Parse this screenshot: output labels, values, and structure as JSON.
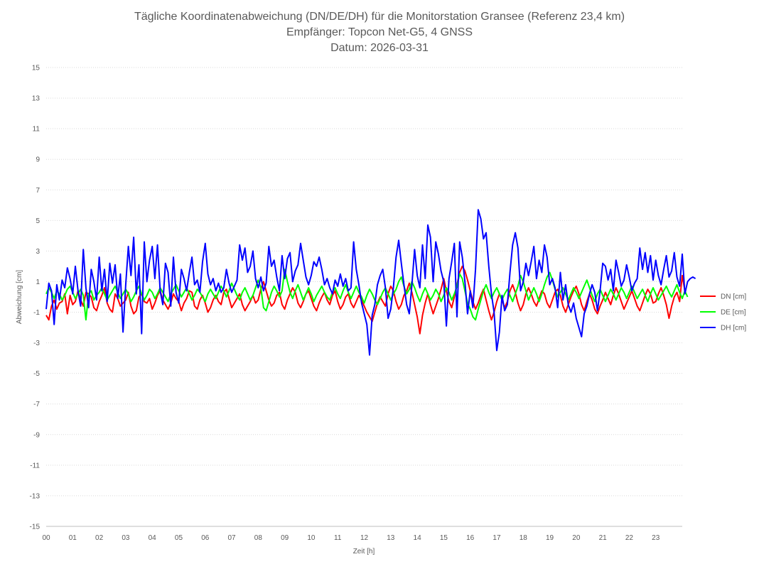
{
  "chart_data": {
    "type": "line",
    "title": [
      "Tägliche Koordinatenabweichung (DN/DE/DH) für die Monitorstation Gransee (Referenz 23,4 km)",
      "Empfänger: Topcon Net-G5, 4 GNSS",
      "Datum: 2026-03-31"
    ],
    "xlabel": "Zeit [h]",
    "ylabel": "Abweichung [cm]",
    "xlim": [
      0,
      24
    ],
    "ylim": [
      -15,
      15
    ],
    "x_ticks": [
      "00",
      "01",
      "02",
      "03",
      "04",
      "05",
      "06",
      "07",
      "08",
      "09",
      "10",
      "11",
      "12",
      "13",
      "14",
      "15",
      "16",
      "17",
      "18",
      "19",
      "20",
      "21",
      "22",
      "23"
    ],
    "y_ticks": [
      15,
      13,
      11,
      9,
      7,
      5,
      3,
      1,
      -1,
      -3,
      -5,
      -7,
      -9,
      -11,
      -13,
      -15
    ],
    "grid": true,
    "legend_position": "right",
    "sample_interval_h": 0.1,
    "series": [
      {
        "name": "DN [cm]",
        "color": "#ff0000",
        "values": [
          -1.2,
          -1.5,
          -0.6,
          -0.2,
          -0.8,
          -0.4,
          -0.3,
          0.2,
          -1.1,
          0.1,
          -0.5,
          -0.3,
          0.4,
          -0.2,
          -0.6,
          0.3,
          0.2,
          0.0,
          -0.7,
          -0.9,
          -0.3,
          0.1,
          0.6,
          -0.4,
          -0.8,
          -1.0,
          0.2,
          -0.1,
          -0.6,
          -0.4,
          -0.2,
          0.3,
          -0.6,
          -1.1,
          -0.9,
          0.0,
          0.2,
          -0.3,
          -0.4,
          -0.1,
          -0.8,
          -0.4,
          0.1,
          0.4,
          -0.2,
          -0.5,
          -0.8,
          -0.4,
          0.2,
          -0.1,
          -0.3,
          -0.9,
          -0.4,
          -0.1,
          0.4,
          0.3,
          -0.6,
          -0.8,
          -0.2,
          0.1,
          -0.4,
          -1.0,
          -0.7,
          -0.2,
          0.1,
          -0.3,
          -0.5,
          0.3,
          0.5,
          -0.1,
          -0.7,
          -0.4,
          -0.1,
          0.2,
          -0.5,
          -0.9,
          -0.6,
          -0.3,
          0.1,
          -0.4,
          -0.2,
          0.5,
          1.0,
          0.4,
          -0.2,
          -0.6,
          -0.4,
          0.1,
          0.3,
          -0.5,
          -0.8,
          -0.2,
          0.2,
          0.6,
          0.3,
          -0.4,
          -0.7,
          -0.3,
          0.2,
          0.4,
          -0.1,
          -0.6,
          -0.9,
          -0.4,
          0.0,
          0.3,
          -0.2,
          -0.5,
          0.1,
          0.4,
          -0.3,
          -0.8,
          -0.5,
          0.0,
          0.2,
          -0.4,
          -0.7,
          -0.3,
          0.1,
          -0.2,
          -0.6,
          -1.0,
          -1.3,
          -1.6,
          -1.0,
          -0.4,
          0.0,
          -0.3,
          -0.6,
          0.2,
          0.7,
          0.4,
          -0.3,
          -0.8,
          -0.5,
          0.1,
          0.4,
          0.9,
          0.3,
          -0.5,
          -1.3,
          -2.4,
          -1.2,
          -0.4,
          0.2,
          -0.5,
          -1.1,
          -0.6,
          -0.1,
          0.5,
          1.2,
          0.4,
          -0.3,
          -0.7,
          0.0,
          0.8,
          1.6,
          2.0,
          1.7,
          1.1,
          0.4,
          -0.3,
          -0.8,
          -0.4,
          0.1,
          0.5,
          -0.2,
          -0.9,
          -1.5,
          -1.0,
          -0.3,
          0.2,
          -0.2,
          -0.7,
          -0.3,
          0.4,
          0.8,
          0.3,
          -0.4,
          -0.9,
          -0.5,
          0.2,
          0.6,
          0.2,
          -0.3,
          -0.6,
          -0.1,
          0.4,
          0.2,
          -0.4,
          -0.7,
          -0.2,
          0.3,
          0.5,
          0.1,
          -0.6,
          -1.0,
          -0.5,
          0.0,
          0.4,
          0.7,
          0.2,
          -0.5,
          -0.9,
          -0.3,
          0.2,
          -0.2,
          -0.8,
          -1.1,
          -0.6,
          -0.2,
          0.3,
          -0.1,
          -0.5,
          0.1,
          0.6,
          0.2,
          -0.3,
          -0.8,
          -0.4,
          0.0,
          0.4,
          -0.1,
          -0.6,
          -0.9,
          -0.4,
          0.1,
          0.5,
          0.2,
          -0.4,
          -0.3,
          0.2,
          0.6,
          0.1,
          -0.5,
          -1.4,
          -0.6,
          0.0,
          0.3,
          -0.3,
          1.4,
          0.4
        ]
      },
      {
        "name": "DE [cm]",
        "color": "#00ff00",
        "values": [
          0.2,
          0.6,
          0.3,
          -0.1,
          0.4,
          0.2,
          -0.2,
          0.1,
          0.5,
          0.7,
          0.3,
          -0.1,
          0.2,
          0.5,
          0.1,
          -1.5,
          0.2,
          0.4,
          -0.2,
          0.1,
          0.3,
          0.6,
          0.2,
          -0.2,
          0.1,
          0.4,
          0.7,
          0.3,
          -0.1,
          0.2,
          0.5,
          0.2,
          -0.3,
          0.0,
          0.4,
          0.7,
          0.2,
          -0.2,
          0.1,
          0.5,
          0.3,
          -0.1,
          0.2,
          0.6,
          0.3,
          0.0,
          -0.3,
          0.2,
          0.5,
          0.8,
          0.4,
          0.0,
          0.3,
          0.6,
          0.2,
          -0.2,
          0.1,
          0.5,
          0.3,
          0.0,
          -0.3,
          0.2,
          0.5,
          0.2,
          -0.1,
          0.3,
          0.7,
          0.4,
          0.0,
          0.4,
          0.9,
          0.5,
          0.1,
          -0.2,
          0.3,
          0.6,
          0.2,
          -0.2,
          0.1,
          0.6,
          1.1,
          0.6,
          -0.7,
          -0.9,
          -0.3,
          0.3,
          0.7,
          0.4,
          0.0,
          0.4,
          1.8,
          1.0,
          0.3,
          -0.1,
          0.4,
          0.8,
          0.3,
          -0.2,
          0.2,
          0.6,
          0.2,
          -0.3,
          0.1,
          0.4,
          0.7,
          0.3,
          0.0,
          -0.2,
          0.3,
          0.6,
          0.2,
          -0.1,
          0.4,
          0.8,
          0.3,
          -0.1,
          0.3,
          0.7,
          0.3,
          0.0,
          -0.4,
          0.1,
          0.5,
          0.2,
          -0.2,
          -0.5,
          -0.1,
          0.3,
          0.6,
          0.2,
          -0.2,
          0.2,
          0.5,
          1.0,
          1.3,
          0.7,
          0.2,
          0.5,
          1.0,
          0.6,
          0.1,
          -0.3,
          0.2,
          0.6,
          0.2,
          -0.2,
          0.1,
          0.5,
          0.2,
          -0.3,
          0.1,
          0.6,
          0.3,
          -0.2,
          0.2,
          0.7,
          1.5,
          1.2,
          0.4,
          -0.4,
          -0.8,
          -1.3,
          -1.5,
          -0.8,
          -0.2,
          0.4,
          0.8,
          0.3,
          -0.1,
          0.3,
          0.6,
          0.2,
          -0.2,
          0.2,
          0.5,
          0.1,
          -0.3,
          0.2,
          0.7,
          1.4,
          1.0,
          0.4,
          -0.2,
          0.2,
          0.6,
          0.2,
          -0.3,
          0.2,
          0.8,
          1.3,
          1.6,
          1.1,
          0.5,
          0.0,
          0.3,
          0.6,
          0.2,
          -0.2,
          0.2,
          0.6,
          0.3,
          -0.1,
          0.3,
          0.7,
          1.1,
          0.6,
          0.1,
          -0.3,
          0.2,
          0.5,
          0.1,
          -0.3,
          0.1,
          0.5,
          0.2,
          -0.2,
          0.2,
          0.6,
          0.3,
          -0.1,
          0.3,
          0.7,
          0.3,
          -0.1,
          0.2,
          0.5,
          0.1,
          -0.3,
          0.2,
          0.6,
          0.2,
          -0.2,
          0.1,
          0.4,
          0.7,
          0.3,
          0.0,
          0.4,
          0.8,
          0.3,
          -0.1,
          0.4,
          0.0
        ]
      },
      {
        "name": "DH [cm]",
        "color": "#0000ff",
        "values": [
          -0.8,
          0.9,
          0.4,
          -1.8,
          0.8,
          -0.2,
          1.1,
          0.6,
          1.9,
          1.2,
          0.2,
          2.0,
          0.4,
          -0.6,
          3.1,
          0.6,
          -0.7,
          1.8,
          1.0,
          -0.2,
          2.6,
          0.4,
          1.8,
          -0.3,
          2.2,
          0.9,
          2.1,
          -0.1,
          1.5,
          -2.3,
          0.8,
          3.3,
          1.4,
          3.9,
          0.2,
          2.1,
          -2.4,
          3.6,
          1.0,
          2.4,
          3.3,
          1.2,
          3.4,
          0.4,
          -0.5,
          2.2,
          1.6,
          -0.6,
          2.6,
          0.3,
          -0.4,
          1.8,
          1.2,
          0.4,
          1.6,
          2.6,
          0.8,
          1.1,
          0.3,
          2.3,
          3.5,
          1.5,
          0.8,
          1.2,
          0.4,
          0.9,
          0.3,
          0.6,
          1.8,
          0.9,
          0.3,
          0.7,
          1.1,
          3.4,
          2.4,
          3.2,
          1.6,
          2.0,
          3.0,
          1.2,
          0.6,
          1.3,
          0.4,
          0.9,
          3.3,
          2.0,
          2.4,
          1.3,
          0.4,
          2.7,
          1.2,
          2.5,
          2.9,
          1.0,
          1.7,
          2.1,
          3.5,
          2.4,
          1.3,
          0.8,
          1.4,
          2.3,
          2.0,
          2.6,
          1.8,
          0.8,
          1.2,
          0.6,
          0.2,
          1.1,
          0.7,
          1.5,
          0.7,
          1.2,
          0.4,
          0.6,
          3.6,
          1.8,
          0.8,
          -0.4,
          -1.1,
          -1.8,
          -3.8,
          -1.2,
          -0.5,
          0.8,
          1.4,
          1.8,
          0.6,
          -1.4,
          -0.8,
          0.6,
          2.6,
          3.7,
          2.2,
          0.8,
          -0.5,
          -1.1,
          0.8,
          3.1,
          1.4,
          0.6,
          3.4,
          1.2,
          4.7,
          3.9,
          1.0,
          3.6,
          2.8,
          1.7,
          1.0,
          -1.9,
          1.2,
          2.3,
          3.5,
          -1.3,
          3.6,
          2.6,
          1.0,
          -1.1,
          0.4,
          -0.7,
          1.8,
          5.7,
          5.1,
          3.8,
          4.2,
          2.0,
          0.2,
          -1.0,
          -3.5,
          -2.3,
          0.1,
          -0.9,
          -0.5,
          1.6,
          3.4,
          4.2,
          3.2,
          0.4,
          1.0,
          2.2,
          1.4,
          2.3,
          3.3,
          1.2,
          2.4,
          1.6,
          3.4,
          2.6,
          0.8,
          1.2,
          0.6,
          -0.7,
          1.6,
          -0.2,
          0.8,
          -0.5,
          -1.0,
          -0.4,
          -1.4,
          -2.0,
          -2.6,
          -1.1,
          -0.6,
          0.2,
          0.8,
          0.3,
          -0.9,
          0.4,
          2.2,
          2.0,
          1.1,
          1.8,
          0.4,
          2.4,
          1.6,
          0.7,
          1.1,
          2.1,
          1.3,
          0.4,
          0.9,
          1.2,
          3.2,
          1.8,
          2.9,
          1.6,
          2.7,
          1.1,
          2.4,
          1.4,
          0.8,
          1.8,
          2.7,
          1.3,
          1.7,
          2.9,
          1.3,
          0.7,
          2.8,
          0.2,
          1.0,
          1.2,
          1.3,
          1.2
        ]
      }
    ]
  }
}
